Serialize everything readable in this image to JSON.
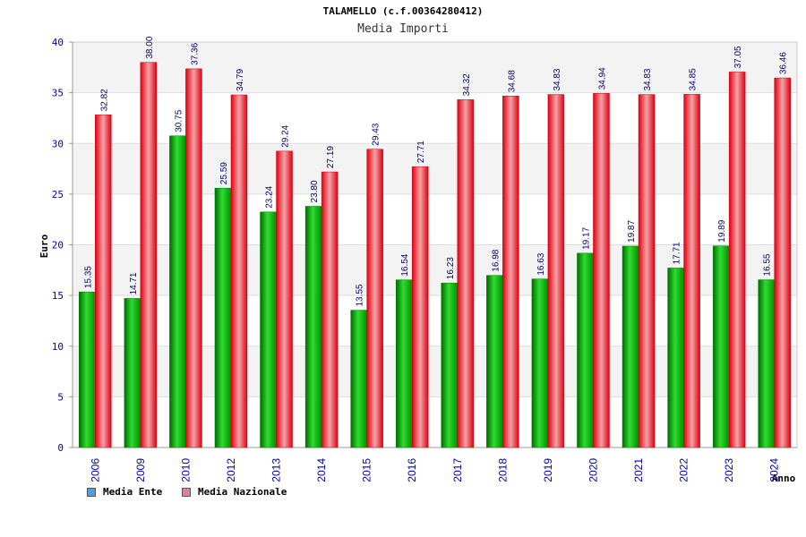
{
  "title": "TALAMELLO (c.f.00364280412)",
  "subtitle": "Media Importi",
  "chart_data": {
    "type": "bar",
    "title": "TALAMELLO (c.f.00364280412)",
    "subtitle": "Media Importi",
    "xlabel": "Anno",
    "ylabel": "Euro",
    "ylim": [
      0,
      40
    ],
    "yticks": [
      0,
      5,
      10,
      15,
      20,
      25,
      30,
      35,
      40
    ],
    "grid": true,
    "legend_position": "bottom-left",
    "categories": [
      "2006",
      "2009",
      "2010",
      "2012",
      "2013",
      "2014",
      "2015",
      "2016",
      "2017",
      "2018",
      "2019",
      "2020",
      "2021",
      "2022",
      "2023",
      "2024"
    ],
    "series": [
      {
        "name": "Media Ente",
        "color": "#00b400",
        "legend_color": "#5b9bd5",
        "values": [
          15.35,
          14.71,
          30.75,
          25.59,
          23.24,
          23.8,
          13.55,
          16.54,
          16.23,
          16.98,
          16.63,
          19.17,
          19.87,
          17.71,
          19.89,
          16.55
        ],
        "labels": [
          "15.35",
          "14.71",
          "30.75",
          "25.59",
          "23.24",
          "23.80",
          "13.55",
          "16.54",
          "16.23",
          "16.98",
          "16.63",
          "19.17",
          "19.87",
          "17.71",
          "19.89",
          "16.55"
        ]
      },
      {
        "name": "Media Nazionale",
        "color": "#e8101a",
        "legend_color": "#d9829b",
        "values": [
          32.82,
          38.0,
          37.36,
          34.79,
          29.24,
          27.19,
          29.43,
          27.71,
          34.32,
          34.68,
          34.83,
          34.94,
          34.83,
          34.85,
          37.05,
          36.46
        ],
        "labels": [
          "32.82",
          "38.00",
          "37.36",
          "34.79",
          "29.24",
          "27.19",
          "29.43",
          "27.71",
          "34.32",
          "34.68",
          "34.83",
          "34.94",
          "34.83",
          "34.85",
          "37.05",
          "36.46"
        ]
      }
    ]
  }
}
